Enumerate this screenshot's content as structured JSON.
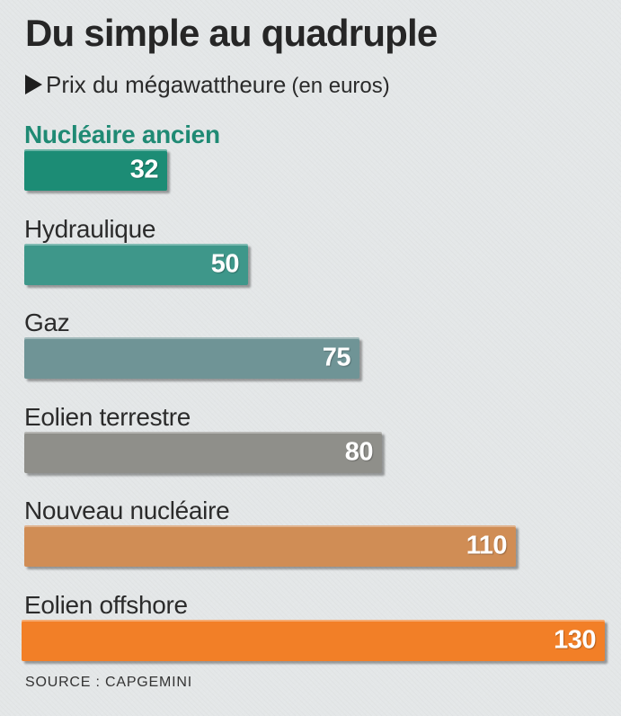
{
  "title": "Du simple au quadruple",
  "subtitle": {
    "main": "Prix du mégawattheure",
    "unit": "(en euros)"
  },
  "source": "SOURCE : CAPGEMINI",
  "chart_data": {
    "type": "bar",
    "orientation": "horizontal",
    "title": "Du simple au quadruple",
    "subtitle": "Prix du mégawattheure (en euros)",
    "xlabel": "",
    "ylabel": "",
    "categories": [
      "Nucléaire ancien",
      "Hydraulique",
      "Gaz",
      "Eolien terrestre",
      "Nouveau nucléaire",
      "Eolien offshore"
    ],
    "values": [
      32,
      50,
      75,
      80,
      110,
      130
    ],
    "highlighted_category": "Nucléaire ancien",
    "colors": [
      "#1c8c75",
      "#3e978a",
      "#6f9496",
      "#8f8f8a",
      "#d08d55",
      "#f27f27"
    ],
    "grid": false,
    "legend": "none",
    "data_labels": "inside-end"
  }
}
